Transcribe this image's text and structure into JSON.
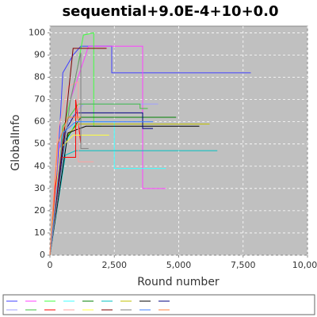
{
  "chart_data": {
    "type": "line",
    "title": "sequential+9.0E-4+10+0.0",
    "xlabel": "Round number",
    "ylabel": "GlobalInfo",
    "xlim": [
      0,
      10000
    ],
    "ylim": [
      0,
      103
    ],
    "xticks": [
      0,
      {
        "value": 2500,
        "label": "2,500"
      },
      {
        "value": 5000,
        "label": "5,000"
      },
      {
        "value": 7500,
        "label": "7,500"
      },
      {
        "value": 10000,
        "label": "10,000"
      }
    ],
    "yticks": [
      0,
      10,
      20,
      30,
      40,
      50,
      60,
      70,
      80,
      90,
      100
    ],
    "grid": true,
    "legend": "bottom",
    "series": [
      {
        "color": "#4040ff",
        "x": [
          0,
          300,
          500,
          900,
          1200,
          2400,
          2400,
          7800
        ],
        "values": [
          0,
          40,
          82,
          90,
          94,
          94,
          82,
          82
        ]
      },
      {
        "color": "#ff40ff",
        "x": [
          0,
          400,
          800,
          1500,
          3600,
          3600,
          4500
        ],
        "values": [
          0,
          50,
          70,
          94,
          94,
          30,
          30
        ]
      },
      {
        "color": "#40ff40",
        "x": [
          0,
          500,
          1000,
          1300,
          1700,
          1700,
          2000
        ],
        "values": [
          0,
          55,
          80,
          99,
          100,
          58,
          58
        ]
      },
      {
        "color": "#40ffff",
        "x": [
          0,
          600,
          1000,
          2500,
          2500,
          4500
        ],
        "values": [
          0,
          50,
          60,
          60,
          39,
          39
        ]
      },
      {
        "color": "#008000",
        "x": [
          0,
          500,
          1200,
          4900
        ],
        "values": [
          0,
          50,
          62,
          62
        ]
      },
      {
        "color": "#00c0c0",
        "x": [
          0,
          600,
          1000,
          6500
        ],
        "values": [
          0,
          45,
          47,
          47
        ]
      },
      {
        "color": "#c0c000",
        "x": [
          0,
          500,
          1100,
          6200
        ],
        "values": [
          0,
          52,
          59,
          59
        ]
      },
      {
        "color": "#000000",
        "x": [
          0,
          700,
          1400,
          5800
        ],
        "values": [
          0,
          55,
          58,
          58
        ]
      },
      {
        "color": "#000080",
        "x": [
          0,
          600,
          1000,
          3600,
          3600,
          4000
        ],
        "values": [
          0,
          56,
          64,
          64,
          57,
          57
        ]
      },
      {
        "color": "#a0a0ff",
        "x": [
          0,
          700,
          1300,
          4200
        ],
        "values": [
          0,
          60,
          68,
          68
        ]
      },
      {
        "color": "#40c040",
        "x": [
          0,
          500,
          1100,
          3500,
          3500,
          3800
        ],
        "values": [
          0,
          58,
          68,
          68,
          66,
          66
        ]
      },
      {
        "color": "#ff0000",
        "x": [
          0,
          200,
          400,
          1000,
          1000,
          1200
        ],
        "values": [
          0,
          30,
          44,
          44,
          70,
          50
        ]
      },
      {
        "color": "#ffa0a0",
        "x": [
          0,
          300,
          700,
          1100,
          1100,
          1700
        ],
        "values": [
          0,
          55,
          76,
          78,
          42,
          42
        ]
      },
      {
        "color": "#ffff40",
        "x": [
          0,
          400,
          900,
          2300
        ],
        "values": [
          0,
          48,
          54,
          54
        ]
      },
      {
        "color": "#800000",
        "x": [
          0,
          600,
          900,
          2200
        ],
        "values": [
          0,
          60,
          93,
          93
        ]
      },
      {
        "color": "#808080",
        "x": [
          0,
          800,
          1200,
          1200,
          1500
        ],
        "values": [
          0,
          70,
          91,
          48,
          48
        ]
      },
      {
        "color": "#4080ff",
        "x": [
          0,
          500,
          1000,
          4000
        ],
        "values": [
          0,
          55,
          60,
          60
        ]
      },
      {
        "color": "#ff8040",
        "x": [
          0,
          300,
          700,
          1200
        ],
        "values": [
          0,
          50,
          62,
          62
        ]
      }
    ]
  }
}
